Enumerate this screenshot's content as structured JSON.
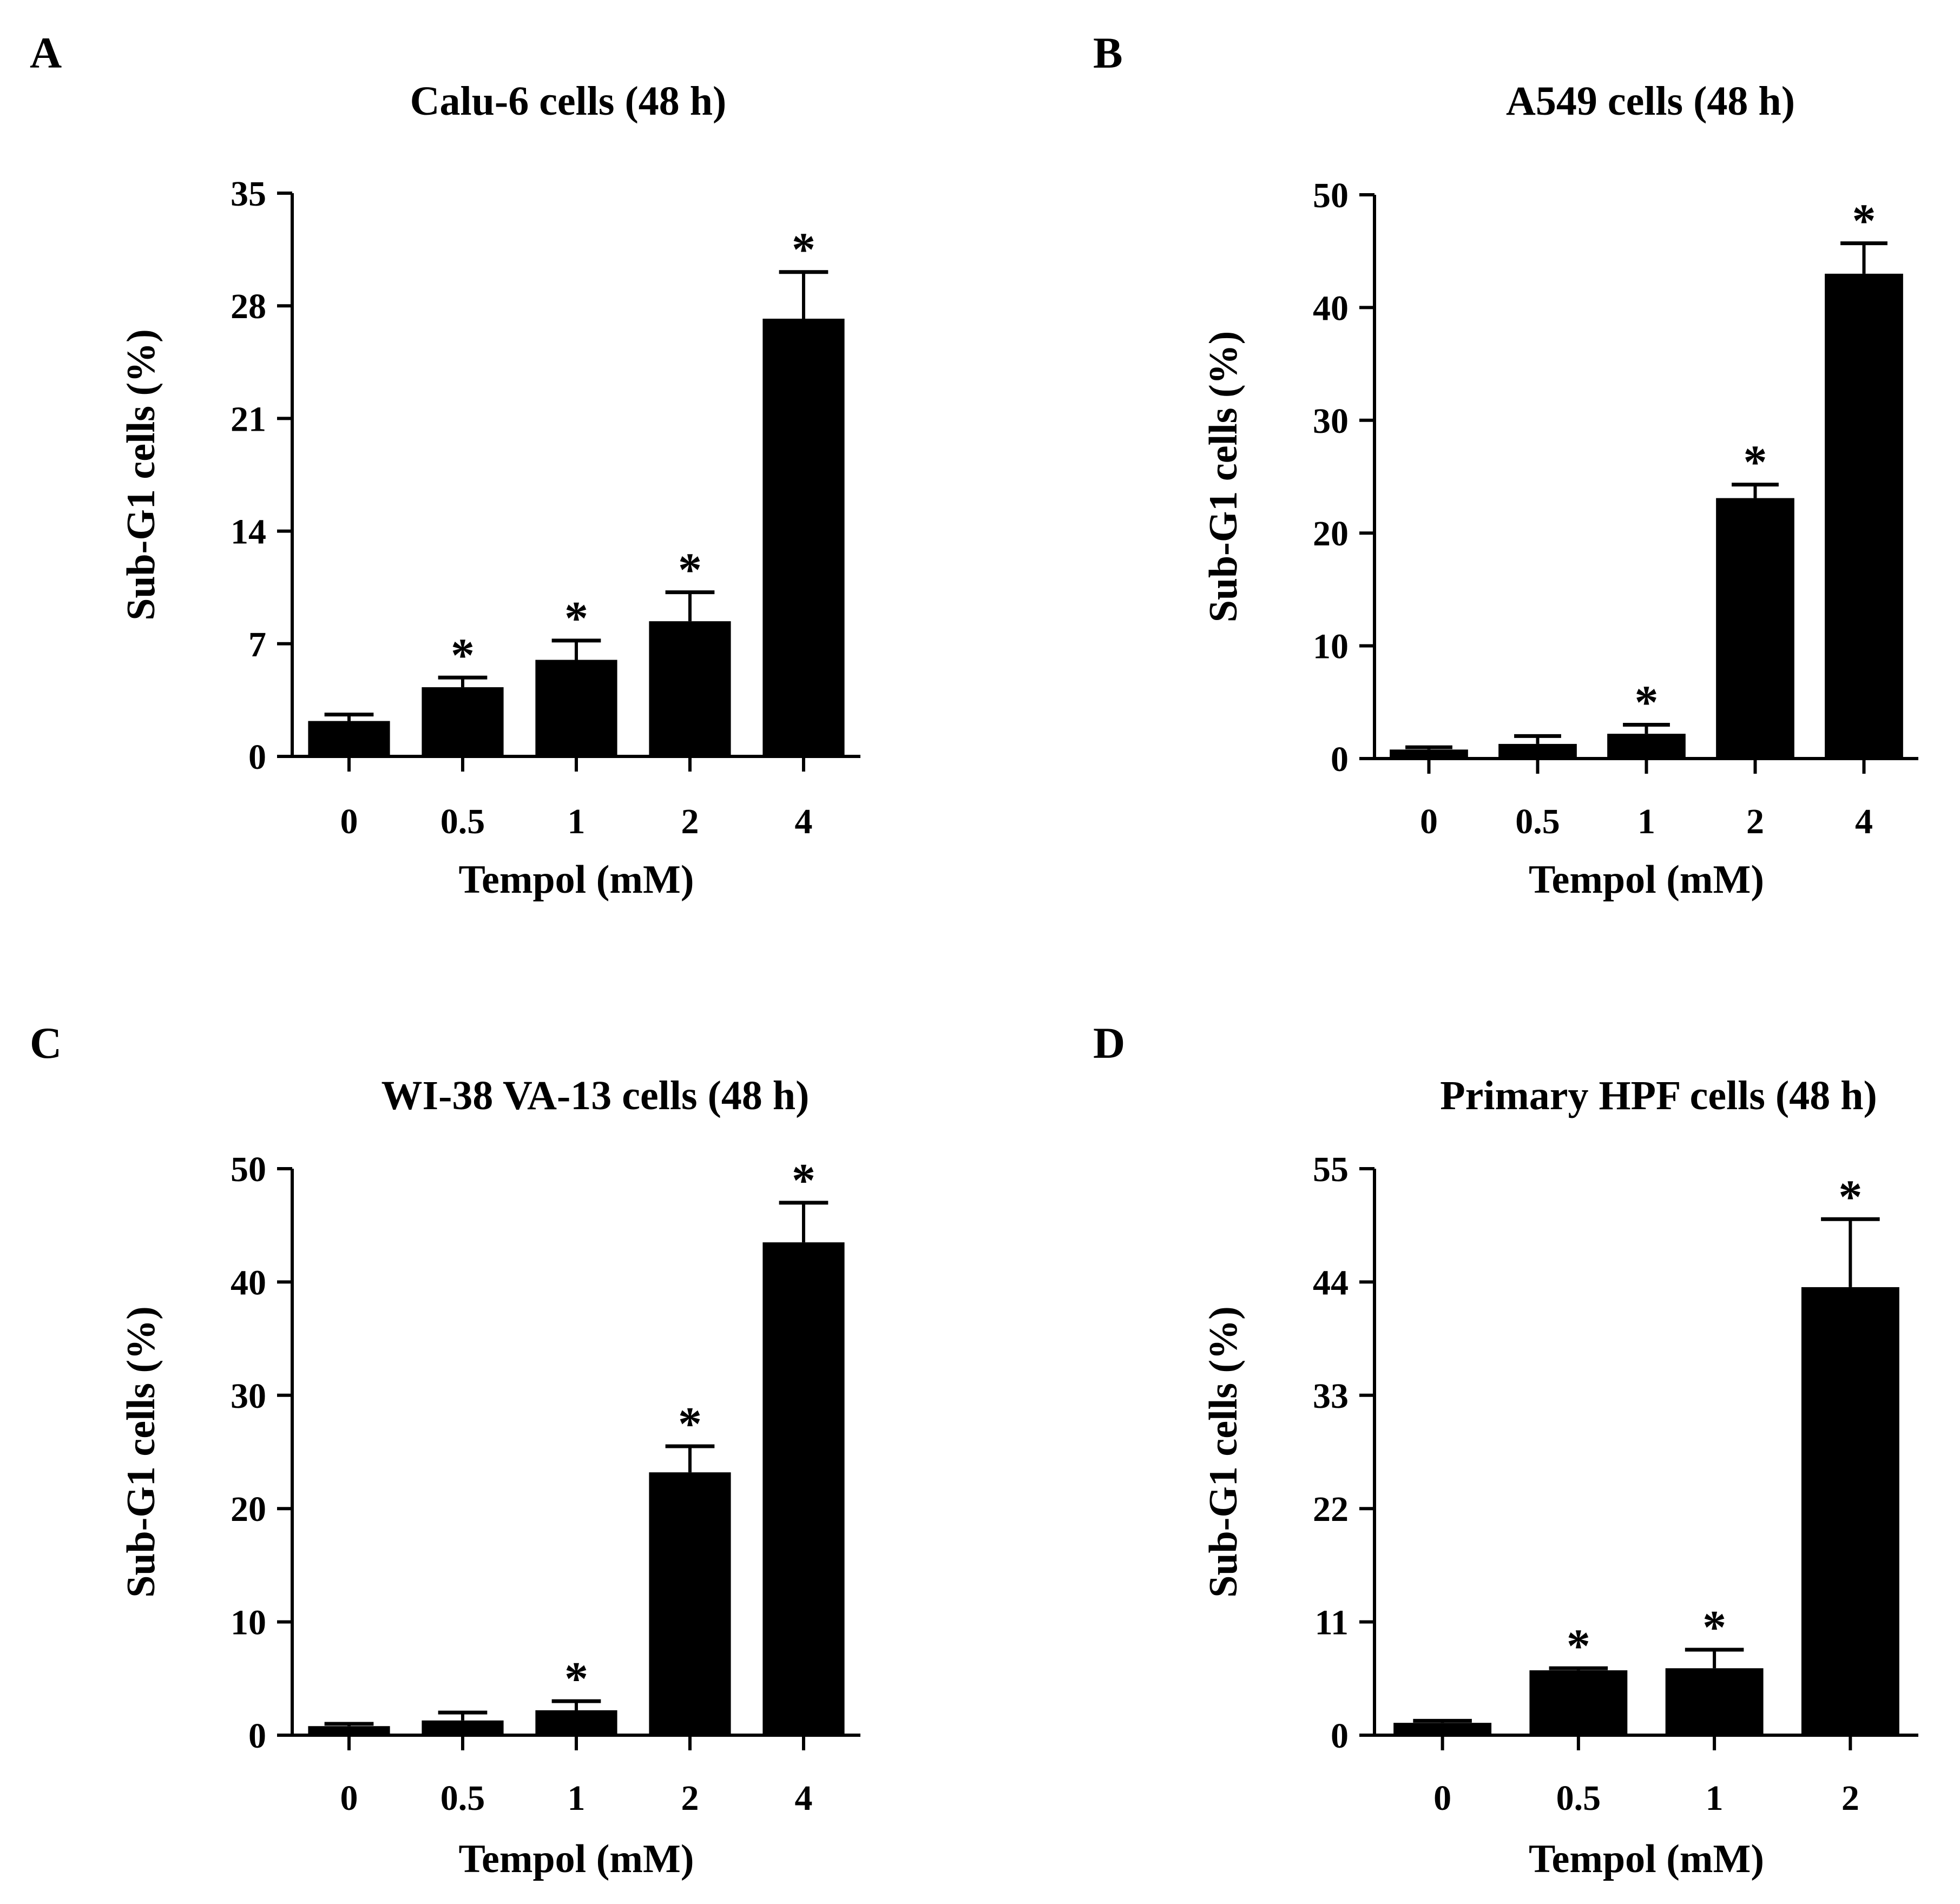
{
  "figure": {
    "panels": [
      "A",
      "B",
      "C",
      "D"
    ]
  },
  "style": {
    "bar_color": "#000000",
    "axis_color": "#000000",
    "background": "#ffffff"
  },
  "chart_data": [
    {
      "panel": "A",
      "type": "bar",
      "title": "Calu-6 cells (48 h)",
      "xlabel": "Tempol (mM)",
      "ylabel": "Sub-G1  cells (%)",
      "categories": [
        "0",
        "0.5",
        "1",
        "2",
        "4"
      ],
      "values": [
        2.2,
        4.3,
        6.0,
        8.4,
        27.2
      ],
      "errors": [
        0.4,
        0.6,
        1.2,
        1.8,
        2.9
      ],
      "significant": [
        false,
        true,
        true,
        true,
        true
      ],
      "marker": "*",
      "ylim": [
        0,
        35
      ],
      "yticks": [
        0,
        7,
        14,
        21,
        28,
        35
      ],
      "ytick_labels": [
        "0",
        "7",
        "14",
        "21",
        "28",
        "35"
      ],
      "grid": false
    },
    {
      "panel": "B",
      "type": "bar",
      "title": "A549 cells (48 h)",
      "xlabel": "Tempol (mM)",
      "ylabel": "Sub-G1 cells (%)",
      "categories": [
        "0",
        "0.5",
        "1",
        "2",
        "4"
      ],
      "values": [
        0.8,
        1.3,
        2.2,
        23.1,
        43.0
      ],
      "errors": [
        0.2,
        0.7,
        0.8,
        1.2,
        2.7
      ],
      "significant": [
        false,
        false,
        true,
        true,
        true
      ],
      "marker": "*",
      "ylim": [
        0,
        50
      ],
      "yticks": [
        0,
        10,
        20,
        30,
        40,
        50
      ],
      "ytick_labels": [
        "0",
        "10",
        "20",
        "30",
        "40",
        "50"
      ],
      "grid": false
    },
    {
      "panel": "C",
      "type": "bar",
      "title": "WI-38 VA-13 cells (48 h)",
      "xlabel": "Tempol (mM)",
      "ylabel": "Sub-G1 cells (%)",
      "categories": [
        "0",
        "0.5",
        "1",
        "2",
        "4"
      ],
      "values": [
        0.8,
        1.3,
        2.2,
        23.2,
        43.5
      ],
      "errors": [
        0.2,
        0.7,
        0.8,
        2.3,
        3.5
      ],
      "significant": [
        false,
        false,
        true,
        true,
        true
      ],
      "marker": "*",
      "ylim": [
        0,
        50
      ],
      "yticks": [
        0,
        10,
        20,
        30,
        40,
        50
      ],
      "ytick_labels": [
        "0",
        "10",
        "20",
        "30",
        "40",
        "50"
      ],
      "grid": false
    },
    {
      "panel": "D",
      "type": "bar",
      "title": "Primary HPF cells (48 h)",
      "xlabel": "Tempol (mM)",
      "ylabel": "Sub-G1 cells (%)",
      "categories": [
        "0",
        "0.5",
        "1",
        "2"
      ],
      "values": [
        1.2,
        6.3,
        6.5,
        43.5
      ],
      "errors": [
        0.2,
        0.2,
        1.8,
        6.6
      ],
      "significant": [
        false,
        true,
        true,
        true
      ],
      "marker": "*",
      "ylim": [
        0,
        55
      ],
      "yticks": [
        0,
        11,
        22,
        33,
        44,
        55
      ],
      "ytick_labels": [
        "0",
        "11",
        "22",
        "33",
        "44",
        "55"
      ],
      "grid": false
    }
  ]
}
